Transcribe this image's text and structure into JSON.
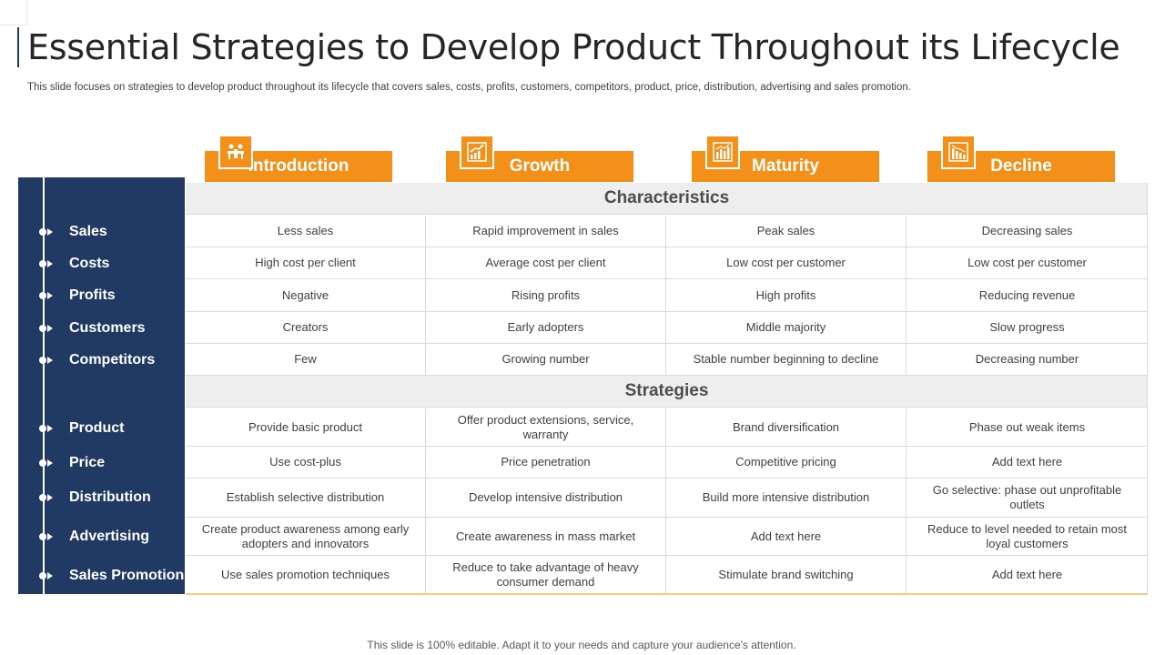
{
  "title": "Essential Strategies to Develop Product Throughout its Lifecycle",
  "subtitle": "This slide focuses on strategies to develop product throughout its lifecycle that covers sales, costs, profits, customers, competitors, product, price, distribution, advertising and sales promotion.",
  "stages": [
    {
      "label": "Introduction",
      "icon": "people-meeting-icon"
    },
    {
      "label": "Growth",
      "icon": "growth-chart-icon"
    },
    {
      "label": "Maturity",
      "icon": "bar-chart-icon"
    },
    {
      "label": "Decline",
      "icon": "decline-chart-icon"
    }
  ],
  "characteristics": {
    "heading": "Characteristics",
    "rows": [
      {
        "label": "Sales",
        "cells": [
          "Less sales",
          "Rapid improvement  in sales",
          "Peak sales",
          "Decreasing sales"
        ]
      },
      {
        "label": "Costs",
        "cells": [
          "High cost per client",
          "Average  cost per client",
          "Low cost per customer",
          "Low cost per customer"
        ]
      },
      {
        "label": "Profits",
        "cells": [
          "Negative",
          "Rising profits",
          "High profits",
          "Reducing revenue"
        ]
      },
      {
        "label": "Customers",
        "cells": [
          "Creators",
          "Early adopters",
          "Middle majority",
          "Slow progress"
        ]
      },
      {
        "label": "Competitors",
        "cells": [
          "Few",
          "Growing number",
          "Stable number  beginning to decline",
          "Decreasing number"
        ]
      }
    ]
  },
  "strategies": {
    "heading": "Strategies",
    "rows": [
      {
        "label": "Product",
        "cells": [
          "Provide  basic product",
          "Offer product  extensions,  service, warranty",
          "Brand diversification",
          "Phase out weak items"
        ]
      },
      {
        "label": "Price",
        "cells": [
          "Use cost-plus",
          "Price penetration",
          "Competitive  pricing",
          "Add text here"
        ]
      },
      {
        "label": "Distribution",
        "cells": [
          "Establish selective distribution",
          "Develop  intensive distribution",
          "Build more intensive distribution",
          "Go selective:  phase out unprofitable outlets"
        ]
      },
      {
        "label": "Advertising",
        "cells": [
          "Create product awareness  among early adopters and innovators",
          "Create awareness  in mass market",
          "Add text here",
          "Reduce to level needed to retain most loyal customers"
        ]
      },
      {
        "label": "Sales Promotion",
        "cells": [
          "Use sales promotion techniques",
          "Reduce to take advantage  of heavy consumer demand",
          "Stimulate brand switching",
          "Add text here"
        ]
      }
    ]
  },
  "footer": "This slide is 100% editable. Adapt it to your needs and capture your audience's attention.",
  "colors": {
    "navy": "#213a64",
    "orange": "#f39019",
    "section_bg": "#eeeeee"
  }
}
